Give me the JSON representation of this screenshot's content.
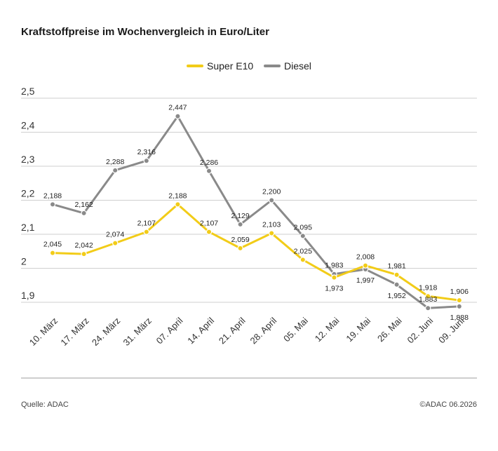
{
  "chart_data": {
    "type": "line",
    "title": "Kraftstoffpreise im Wochenvergleich in Euro/Liter",
    "categories": [
      "10. März",
      "17. März",
      "24. März",
      "31. März",
      "07. April",
      "14. April",
      "21. April",
      "28. April",
      "05. Mai",
      "12. Mai",
      "19. Mai",
      "26. Mai",
      "02. Juni",
      "09. Juni"
    ],
    "series": [
      {
        "name": "Super E10",
        "color": "#f2cc18",
        "values": [
          2.045,
          2.042,
          2.074,
          2.107,
          2.188,
          2.107,
          2.059,
          2.103,
          2.025,
          1.973,
          2.008,
          1.981,
          1.918,
          1.906
        ],
        "labels": [
          "2,045",
          "2,042",
          "2,074",
          "2,107",
          "2,188",
          "2,107",
          "2,059",
          "2,103",
          "2,025",
          "1,973",
          "2,008",
          "1,981",
          "1,918",
          "1,906"
        ]
      },
      {
        "name": "Diesel",
        "color": "#8a8a8a",
        "values": [
          2.188,
          2.162,
          2.288,
          2.316,
          2.447,
          2.286,
          2.129,
          2.2,
          2.095,
          1.983,
          1.997,
          1.952,
          1.883,
          1.888
        ],
        "labels": [
          "2,188",
          "2,162",
          "2,288",
          "2,316",
          "2,447",
          "2,286",
          "2,129",
          "2,200",
          "2,095",
          "1,983",
          "1,997",
          "1,952",
          "1,883",
          "1,888"
        ]
      }
    ],
    "yticks": [
      1.9,
      2.0,
      2.1,
      2.2,
      2.3,
      2.4,
      2.5
    ],
    "ytick_labels": [
      "1,9",
      "2",
      "2,1",
      "2,2",
      "2,3",
      "2,4",
      "2,5"
    ],
    "ylim": [
      1.9,
      2.5
    ],
    "grid": true,
    "legend_position": "top-center"
  },
  "footer": {
    "source": "Quelle: ADAC",
    "copyright": "©ADAC 06.2026"
  }
}
